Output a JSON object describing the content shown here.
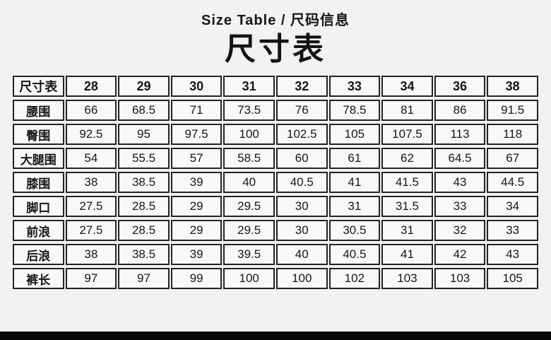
{
  "header": {
    "subtitle": "Size Table / 尺码信息",
    "title": "尺寸表"
  },
  "chart_data": {
    "type": "table",
    "title": "尺寸表",
    "columns": [
      "尺寸表",
      "28",
      "29",
      "30",
      "31",
      "32",
      "33",
      "34",
      "36",
      "38"
    ],
    "rows": [
      {
        "label": "腰围",
        "values": [
          "66",
          "68.5",
          "71",
          "73.5",
          "76",
          "78.5",
          "81",
          "86",
          "91.5"
        ]
      },
      {
        "label": "臀围",
        "values": [
          "92.5",
          "95",
          "97.5",
          "100",
          "102.5",
          "105",
          "107.5",
          "113",
          "118"
        ]
      },
      {
        "label": "大腿围",
        "values": [
          "54",
          "55.5",
          "57",
          "58.5",
          "60",
          "61",
          "62",
          "64.5",
          "67"
        ]
      },
      {
        "label": "膝围",
        "values": [
          "38",
          "38.5",
          "39",
          "40",
          "40.5",
          "41",
          "41.5",
          "43",
          "44.5"
        ]
      },
      {
        "label": "脚口",
        "values": [
          "27.5",
          "28.5",
          "29",
          "29.5",
          "30",
          "31",
          "31.5",
          "33",
          "34"
        ]
      },
      {
        "label": "前浪",
        "values": [
          "27.5",
          "28.5",
          "29",
          "29.5",
          "30",
          "30.5",
          "31",
          "32",
          "33"
        ]
      },
      {
        "label": "后浪",
        "values": [
          "38",
          "38.5",
          "39",
          "39.5",
          "40",
          "40.5",
          "41",
          "42",
          "43"
        ]
      },
      {
        "label": "裤长",
        "values": [
          "97",
          "97",
          "99",
          "100",
          "100",
          "102",
          "103",
          "103",
          "105"
        ]
      }
    ]
  },
  "colors": {
    "page_bg": "#f2f2f0",
    "cell_bg": "#f8f8f6",
    "border": "#242424",
    "text": "#151515",
    "bottom_bar": "#070707"
  }
}
